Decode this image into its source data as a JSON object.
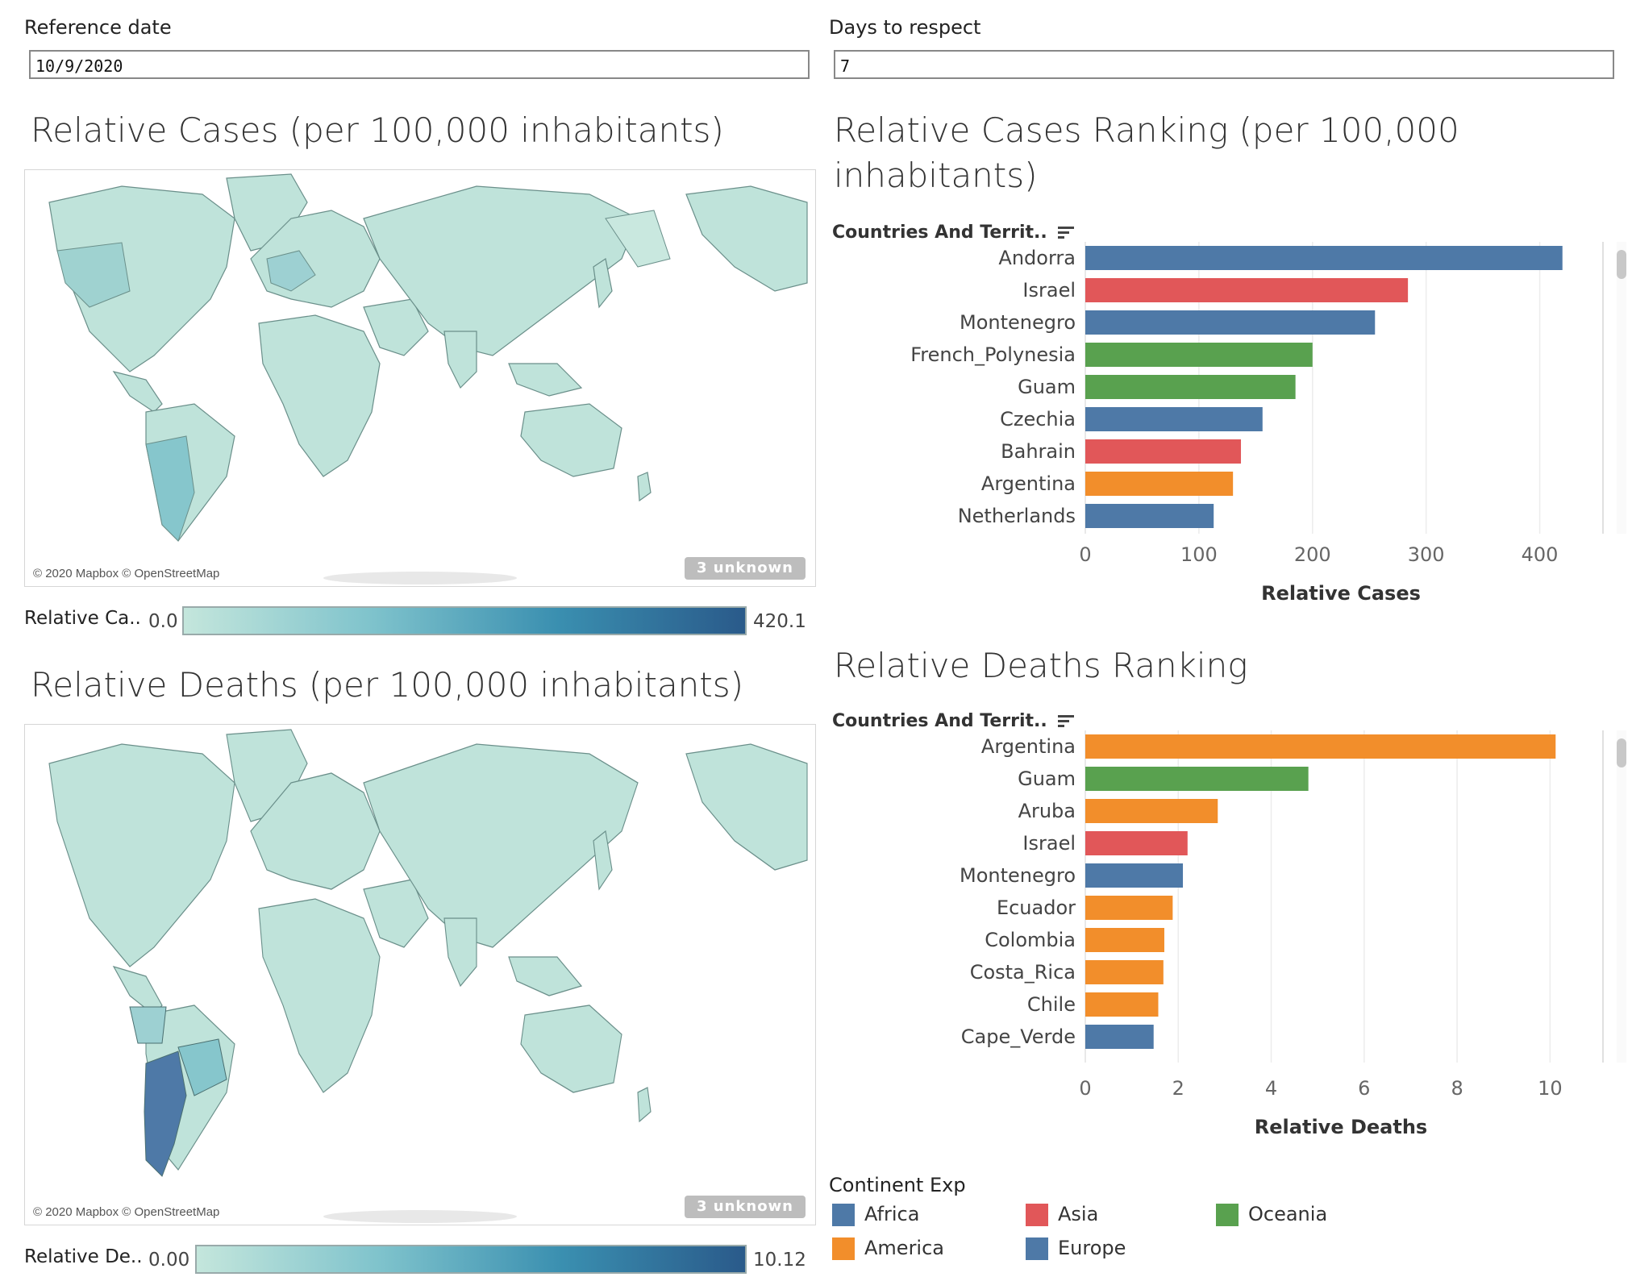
{
  "params": {
    "reference_date": {
      "label": "Reference date",
      "value": "10/9/2020"
    },
    "days_to_respect": {
      "label": "Days to respect",
      "value": "7"
    }
  },
  "cases_map": {
    "title": "Relative Cases (per 100,000 inhabitants)",
    "credit": "© 2020 Mapbox © OpenStreetMap",
    "unknown": "3 unknown",
    "legend_label": "Relative Ca..",
    "legend_min": "0.0",
    "legend_max": "420.1"
  },
  "deaths_map": {
    "title": "Relative Deaths (per 100,000 inhabitants)",
    "credit": "© 2020 Mapbox © OpenStreetMap",
    "unknown": "3 unknown",
    "legend_label": "Relative De..",
    "legend_min": "0.00",
    "legend_max": "10.12"
  },
  "colors": {
    "Africa": "#4e79a7",
    "America": "#f28e2b",
    "Asia": "#e15759",
    "Europe": "#4e79a7",
    "Oceania": "#59a14f",
    "gradient_start": "#c4e6dc",
    "gradient_end": "#2a5a8a"
  },
  "chart_data": [
    {
      "type": "bar",
      "orientation": "horizontal",
      "title": "Relative Cases Ranking (per 100,000 inhabitants)",
      "row_header": "Countries And Territ..",
      "xlabel": "Relative Cases",
      "xlim": [
        0,
        450
      ],
      "xticks": [
        0,
        100,
        200,
        300,
        400
      ],
      "grid": true,
      "categories": [
        "Andorra",
        "Israel",
        "Montenegro",
        "French_Polynesia",
        "Guam",
        "Czechia",
        "Bahrain",
        "Argentina",
        "Netherlands"
      ],
      "values": [
        420,
        284,
        255,
        200,
        185,
        156,
        137,
        130,
        113
      ],
      "continents": [
        "Europe",
        "Asia",
        "Europe",
        "Oceania",
        "Oceania",
        "Europe",
        "Asia",
        "America",
        "Europe"
      ]
    },
    {
      "type": "bar",
      "orientation": "horizontal",
      "title": "Relative Deaths Ranking",
      "row_header": "Countries And Territ..",
      "xlabel": "Relative Deaths",
      "xlim": [
        0,
        11
      ],
      "xticks": [
        0,
        2,
        4,
        6,
        8,
        10
      ],
      "grid": true,
      "categories": [
        "Argentina",
        "Guam",
        "Aruba",
        "Israel",
        "Montenegro",
        "Ecuador",
        "Colombia",
        "Costa_Rica",
        "Chile",
        "Cape_Verde"
      ],
      "values": [
        10.12,
        4.8,
        2.85,
        2.2,
        2.1,
        1.88,
        1.7,
        1.68,
        1.57,
        1.47
      ],
      "continents": [
        "America",
        "Oceania",
        "America",
        "Asia",
        "Europe",
        "America",
        "America",
        "America",
        "America",
        "Africa"
      ]
    }
  ],
  "continent_legend": {
    "title": "Continent Exp",
    "items": [
      {
        "name": "Africa",
        "color": "#4e79a7"
      },
      {
        "name": "Asia",
        "color": "#e15759"
      },
      {
        "name": "Oceania",
        "color": "#59a14f"
      },
      {
        "name": "America",
        "color": "#f28e2b"
      },
      {
        "name": "Europe",
        "color": "#4e79a7"
      }
    ]
  }
}
